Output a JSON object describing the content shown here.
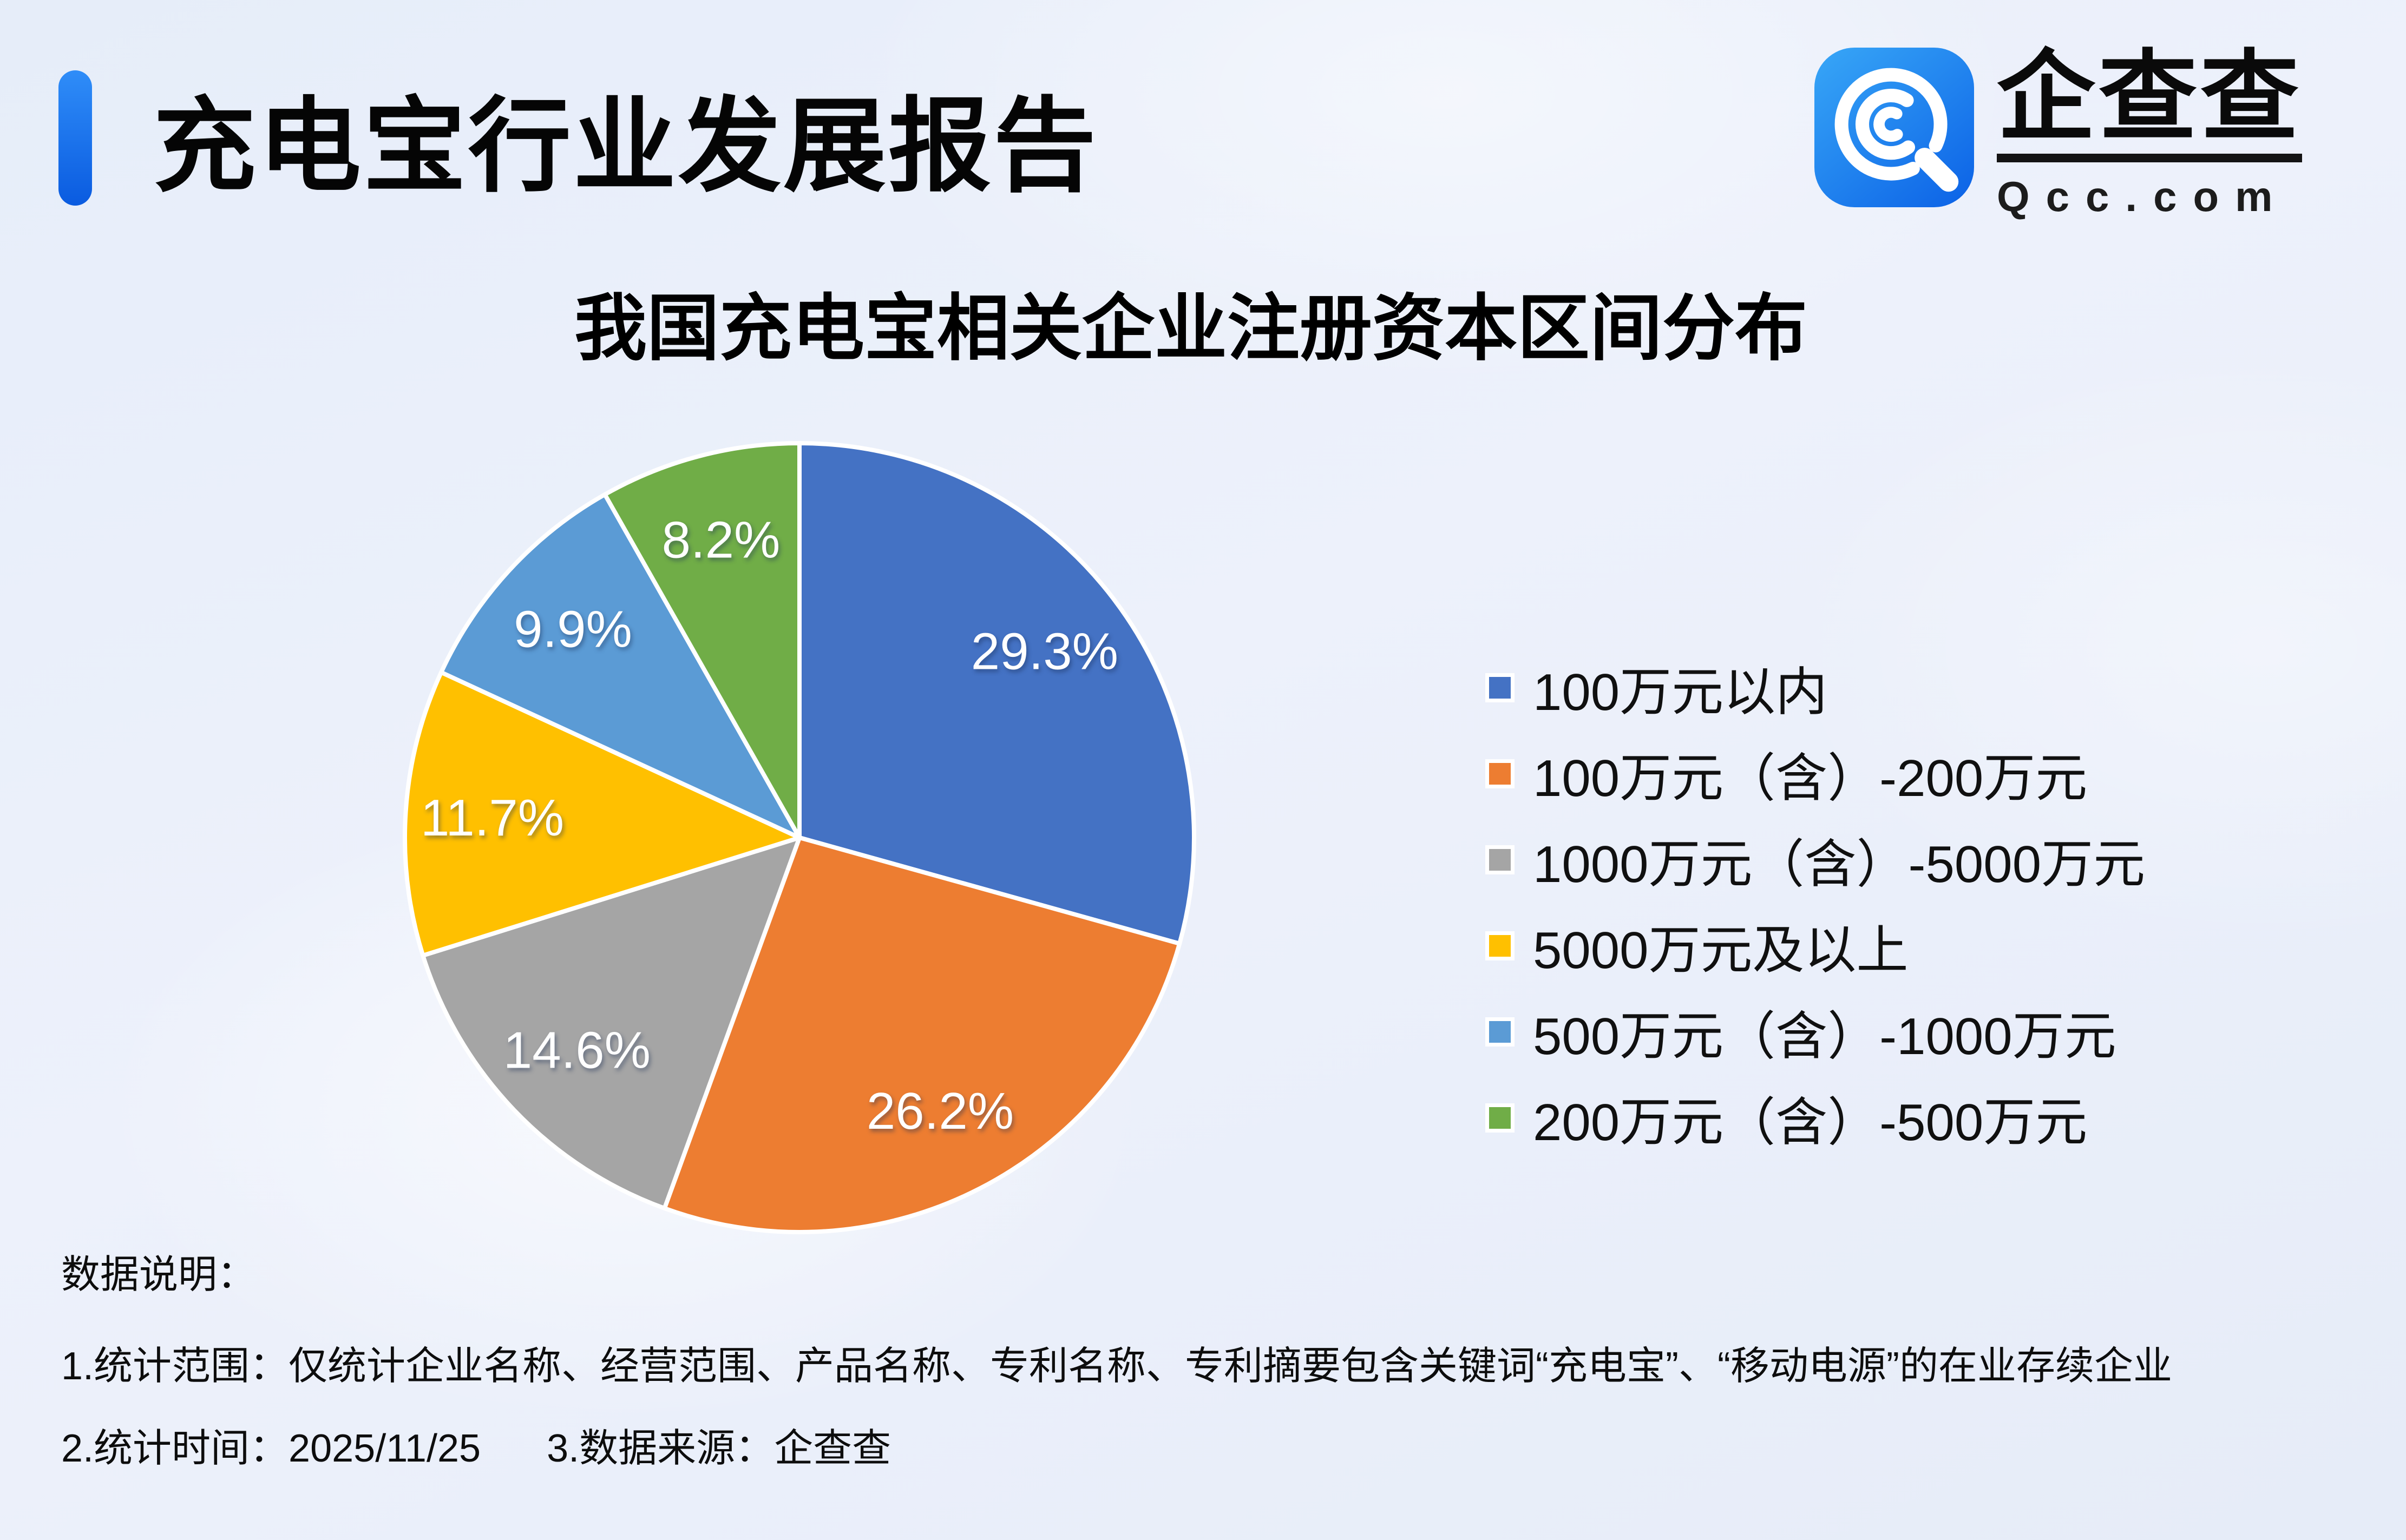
{
  "header": {
    "title": "充电宝行业发展报告",
    "logo": {
      "brand": "企查查",
      "domain": "Qcc.com"
    }
  },
  "chart_data": {
    "type": "pie",
    "title": "我国充电宝相关企业注册资本区间分布",
    "series": [
      {
        "label": "100万元以内",
        "value": 29.3,
        "color": "#4472C4"
      },
      {
        "label": "100万元（含）-200万元",
        "value": 26.2,
        "color": "#ED7D31"
      },
      {
        "label": "1000万元（含）-5000万元",
        "value": 14.6,
        "color": "#A5A5A5"
      },
      {
        "label": "5000万元及以上",
        "value": 11.7,
        "color": "#FFC000"
      },
      {
        "label": "500万元（含）-1000万元",
        "value": 9.9,
        "color": "#5B9BD5"
      },
      {
        "label": "200万元（含）-500万元",
        "value": 8.2,
        "color": "#70AD47"
      }
    ],
    "value_suffix": "%",
    "start_angle_deg": 0,
    "direction": "clockwise",
    "labels_in_slices": true,
    "legend_position": "right",
    "slice_border_color": "#FFFFFF"
  },
  "colors": {
    "accent_bar": "#1173EC",
    "logo_blue": "#1173EC",
    "background": "#EAEFF9",
    "slice_label_text": "#FFFFFF",
    "body_text": "#0D0D0D"
  },
  "notes": {
    "heading": "数据说明：",
    "scope": "1.统计范围：仅统计企业名称、经营范围、产品名称、专利名称、专利摘要包含关键词“充电宝”、“移动电源”的在业存续企业",
    "time": "2.统计时间：2025/11/25",
    "source": "3.数据来源：企查查"
  }
}
